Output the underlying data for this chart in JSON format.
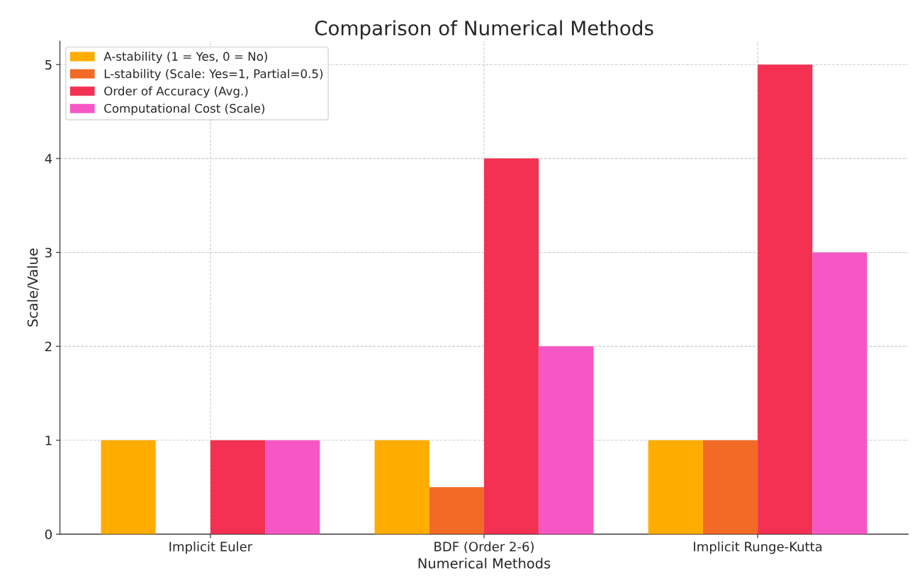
{
  "chart_data": {
    "type": "bar",
    "title": "Comparison of Numerical Methods",
    "xlabel": "Numerical Methods",
    "ylabel": "Scale/Value",
    "categories": [
      "Implicit Euler",
      "BDF (Order 2-6)",
      "Implicit Runge-Kutta"
    ],
    "series": [
      {
        "name": "A-stability (1 = Yes, 0 = No)",
        "color": "#ffad00",
        "values": [
          1,
          1,
          1
        ]
      },
      {
        "name": "L-stability (Scale: Yes=1, Partial=0.5)",
        "color": "#f26b26",
        "values": [
          0,
          0.5,
          1
        ]
      },
      {
        "name": "Order of Accuracy (Avg.)",
        "color": "#f43152",
        "values": [
          1,
          4,
          5
        ]
      },
      {
        "name": "Computational Cost (Scale)",
        "color": "#f757c4",
        "values": [
          1,
          2,
          3
        ]
      }
    ],
    "ylim": [
      0,
      5.25
    ],
    "yticks": [
      0,
      1,
      2,
      3,
      4,
      5
    ],
    "grid": true,
    "legend": "top left"
  }
}
